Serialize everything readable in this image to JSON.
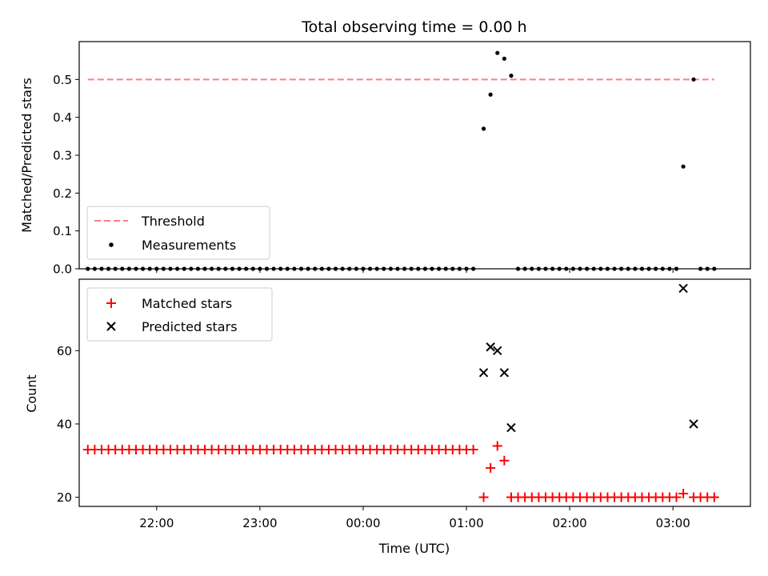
{
  "title": "Total observing time = 0.00 h",
  "xlabel": "Time (UTC)",
  "x_tick_labels": [
    "22:00",
    "23:00",
    "00:00",
    "01:00",
    "02:00",
    "03:00"
  ],
  "colors": {
    "threshold": "#ff7f7f",
    "measurements": "#000000",
    "matched": "#ff0000",
    "predicted": "#000000"
  },
  "chart_data": [
    {
      "type": "scatter",
      "panel": "top",
      "ylabel": "Matched/Predicted stars",
      "ylim": [
        0,
        0.6
      ],
      "y_ticks": [
        "0.0",
        "0.1",
        "0.2",
        "0.3",
        "0.4",
        "0.5"
      ],
      "x_range": [
        "21:15",
        "03:45"
      ],
      "legend": {
        "position": "lower left",
        "entries": [
          "Threshold",
          "Measurements"
        ]
      },
      "threshold": {
        "name": "Threshold",
        "value": 0.5,
        "x_start": "21:20",
        "x_end": "03:24",
        "style": "dashed"
      },
      "series": [
        {
          "name": "Measurements",
          "marker": "dot",
          "x": [
            "21:20",
            "21:24",
            "21:28",
            "21:32",
            "21:36",
            "21:40",
            "21:44",
            "21:48",
            "21:52",
            "21:56",
            "22:00",
            "22:04",
            "22:08",
            "22:12",
            "22:16",
            "22:20",
            "22:24",
            "22:28",
            "22:32",
            "22:36",
            "22:40",
            "22:44",
            "22:48",
            "22:52",
            "22:56",
            "23:00",
            "23:04",
            "23:08",
            "23:12",
            "23:16",
            "23:20",
            "23:24",
            "23:28",
            "23:32",
            "23:36",
            "23:40",
            "23:44",
            "23:48",
            "23:52",
            "23:56",
            "00:00",
            "00:04",
            "00:08",
            "00:12",
            "00:16",
            "00:20",
            "00:24",
            "00:28",
            "00:32",
            "00:36",
            "00:40",
            "00:44",
            "00:48",
            "00:52",
            "00:56",
            "01:00",
            "01:04",
            "01:10",
            "01:14",
            "01:18",
            "01:22",
            "01:26",
            "01:30",
            "01:34",
            "01:38",
            "01:42",
            "01:46",
            "01:50",
            "01:54",
            "01:58",
            "02:02",
            "02:06",
            "02:10",
            "02:14",
            "02:18",
            "02:22",
            "02:26",
            "02:30",
            "02:34",
            "02:38",
            "02:42",
            "02:46",
            "02:50",
            "02:54",
            "02:58",
            "03:02",
            "03:06",
            "03:12",
            "03:16",
            "03:20",
            "03:24"
          ],
          "y": [
            0,
            0,
            0,
            0,
            0,
            0,
            0,
            0,
            0,
            0,
            0,
            0,
            0,
            0,
            0,
            0,
            0,
            0,
            0,
            0,
            0,
            0,
            0,
            0,
            0,
            0,
            0,
            0,
            0,
            0,
            0,
            0,
            0,
            0,
            0,
            0,
            0,
            0,
            0,
            0,
            0,
            0,
            0,
            0,
            0,
            0,
            0,
            0,
            0,
            0,
            0,
            0,
            0,
            0,
            0,
            0,
            0,
            0.37,
            0.46,
            0.57,
            0.555,
            0.51,
            0,
            0,
            0,
            0,
            0,
            0,
            0,
            0,
            0,
            0,
            0,
            0,
            0,
            0,
            0,
            0,
            0,
            0,
            0,
            0,
            0,
            0,
            0,
            0,
            0.27,
            0.5,
            0,
            0,
            0
          ]
        }
      ]
    },
    {
      "type": "scatter",
      "panel": "bottom",
      "ylabel": "Count",
      "ylim": [
        17.5,
        79.5
      ],
      "y_ticks": [
        "20",
        "40",
        "60"
      ],
      "x_range": [
        "21:15",
        "03:45"
      ],
      "legend": {
        "position": "upper left",
        "entries": [
          "Matched stars",
          "Predicted stars"
        ]
      },
      "series": [
        {
          "name": "Matched stars",
          "marker": "plus",
          "x": [
            "21:20",
            "21:24",
            "21:28",
            "21:32",
            "21:36",
            "21:40",
            "21:44",
            "21:48",
            "21:52",
            "21:56",
            "22:00",
            "22:04",
            "22:08",
            "22:12",
            "22:16",
            "22:20",
            "22:24",
            "22:28",
            "22:32",
            "22:36",
            "22:40",
            "22:44",
            "22:48",
            "22:52",
            "22:56",
            "23:00",
            "23:04",
            "23:08",
            "23:12",
            "23:16",
            "23:20",
            "23:24",
            "23:28",
            "23:32",
            "23:36",
            "23:40",
            "23:44",
            "23:48",
            "23:52",
            "23:56",
            "00:00",
            "00:04",
            "00:08",
            "00:12",
            "00:16",
            "00:20",
            "00:24",
            "00:28",
            "00:32",
            "00:36",
            "00:40",
            "00:44",
            "00:48",
            "00:52",
            "00:56",
            "01:00",
            "01:04",
            "01:10",
            "01:14",
            "01:18",
            "01:22",
            "01:26",
            "01:30",
            "01:34",
            "01:38",
            "01:42",
            "01:46",
            "01:50",
            "01:54",
            "01:58",
            "02:02",
            "02:06",
            "02:10",
            "02:14",
            "02:18",
            "02:22",
            "02:26",
            "02:30",
            "02:34",
            "02:38",
            "02:42",
            "02:46",
            "02:50",
            "02:54",
            "02:58",
            "03:02",
            "03:06",
            "03:12",
            "03:16",
            "03:20",
            "03:24"
          ],
          "y": [
            33,
            33,
            33,
            33,
            33,
            33,
            33,
            33,
            33,
            33,
            33,
            33,
            33,
            33,
            33,
            33,
            33,
            33,
            33,
            33,
            33,
            33,
            33,
            33,
            33,
            33,
            33,
            33,
            33,
            33,
            33,
            33,
            33,
            33,
            33,
            33,
            33,
            33,
            33,
            33,
            33,
            33,
            33,
            33,
            33,
            33,
            33,
            33,
            33,
            33,
            33,
            33,
            33,
            33,
            33,
            33,
            33,
            20,
            28,
            34,
            30,
            20,
            20,
            20,
            20,
            20,
            20,
            20,
            20,
            20,
            20,
            20,
            20,
            20,
            20,
            20,
            20,
            20,
            20,
            20,
            20,
            20,
            20,
            20,
            20,
            20,
            21,
            20,
            20,
            20,
            20
          ]
        },
        {
          "name": "Predicted stars",
          "marker": "x",
          "x": [
            "01:10",
            "01:14",
            "01:18",
            "01:22",
            "01:26",
            "03:06",
            "03:12"
          ],
          "y": [
            54,
            61,
            60,
            54,
            39,
            77,
            40
          ]
        }
      ]
    }
  ]
}
